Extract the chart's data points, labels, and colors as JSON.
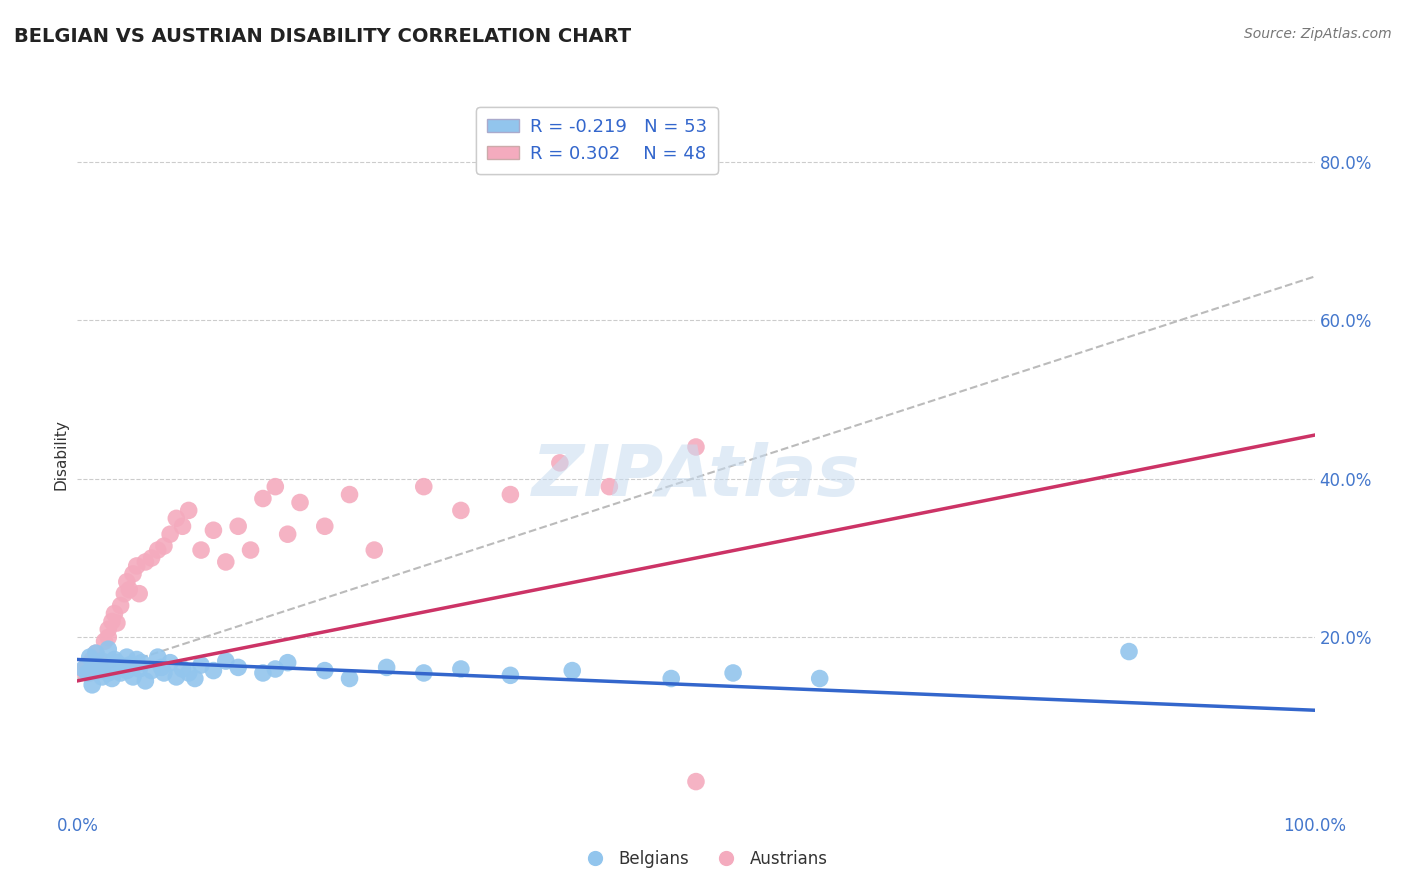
{
  "title": "BELGIAN VS AUSTRIAN DISABILITY CORRELATION CHART",
  "source": "Source: ZipAtlas.com",
  "ylabel": "Disability",
  "xlim": [
    0.0,
    1.0
  ],
  "ylim": [
    -0.02,
    0.88
  ],
  "R_blue": -0.219,
  "N_blue": 53,
  "R_pink": 0.302,
  "N_pink": 48,
  "blue_color": "#92C5ED",
  "pink_color": "#F4ABBE",
  "blue_line_color": "#3366CC",
  "pink_line_color": "#CC3366",
  "diag_line_color": "#BBBBBB",
  "background_color": "#FFFFFF",
  "watermark": "ZIPAtlas",
  "title_fontsize": 14,
  "legend_label_blue": "Belgians",
  "legend_label_pink": "Austrians",
  "blue_line_x": [
    0.0,
    1.0
  ],
  "blue_line_y": [
    0.172,
    0.108
  ],
  "pink_line_x": [
    0.0,
    1.0
  ],
  "pink_line_y": [
    0.145,
    0.455
  ],
  "diag_line_x": [
    0.0,
    1.0
  ],
  "diag_line_y": [
    0.148,
    0.655
  ],
  "belgians_x": [
    0.005,
    0.008,
    0.01,
    0.012,
    0.015,
    0.015,
    0.018,
    0.02,
    0.02,
    0.022,
    0.025,
    0.025,
    0.028,
    0.03,
    0.03,
    0.032,
    0.035,
    0.038,
    0.04,
    0.04,
    0.042,
    0.045,
    0.048,
    0.05,
    0.052,
    0.055,
    0.06,
    0.065,
    0.068,
    0.07,
    0.075,
    0.08,
    0.085,
    0.09,
    0.095,
    0.1,
    0.11,
    0.12,
    0.13,
    0.15,
    0.16,
    0.17,
    0.2,
    0.22,
    0.25,
    0.28,
    0.31,
    0.35,
    0.4,
    0.48,
    0.53,
    0.6,
    0.85
  ],
  "belgians_y": [
    0.16,
    0.155,
    0.175,
    0.14,
    0.165,
    0.18,
    0.158,
    0.15,
    0.17,
    0.162,
    0.155,
    0.185,
    0.148,
    0.172,
    0.16,
    0.168,
    0.155,
    0.162,
    0.175,
    0.158,
    0.165,
    0.15,
    0.172,
    0.16,
    0.168,
    0.145,
    0.158,
    0.175,
    0.162,
    0.155,
    0.168,
    0.15,
    0.16,
    0.155,
    0.148,
    0.165,
    0.158,
    0.17,
    0.162,
    0.155,
    0.16,
    0.168,
    0.158,
    0.148,
    0.162,
    0.155,
    0.16,
    0.152,
    0.158,
    0.148,
    0.155,
    0.148,
    0.182
  ],
  "austrians_x": [
    0.005,
    0.008,
    0.01,
    0.012,
    0.015,
    0.015,
    0.018,
    0.02,
    0.022,
    0.025,
    0.025,
    0.028,
    0.03,
    0.032,
    0.035,
    0.038,
    0.04,
    0.042,
    0.045,
    0.048,
    0.05,
    0.055,
    0.06,
    0.065,
    0.07,
    0.075,
    0.08,
    0.085,
    0.09,
    0.1,
    0.11,
    0.12,
    0.13,
    0.14,
    0.15,
    0.16,
    0.17,
    0.18,
    0.2,
    0.22,
    0.24,
    0.28,
    0.31,
    0.35,
    0.39,
    0.43,
    0.5,
    0.5
  ],
  "austrians_y": [
    0.158,
    0.165,
    0.155,
    0.172,
    0.162,
    0.18,
    0.17,
    0.158,
    0.195,
    0.2,
    0.21,
    0.22,
    0.23,
    0.218,
    0.24,
    0.255,
    0.27,
    0.26,
    0.28,
    0.29,
    0.255,
    0.295,
    0.3,
    0.31,
    0.315,
    0.33,
    0.35,
    0.34,
    0.36,
    0.31,
    0.335,
    0.295,
    0.34,
    0.31,
    0.375,
    0.39,
    0.33,
    0.37,
    0.34,
    0.38,
    0.31,
    0.39,
    0.36,
    0.38,
    0.42,
    0.39,
    0.44,
    0.018
  ]
}
